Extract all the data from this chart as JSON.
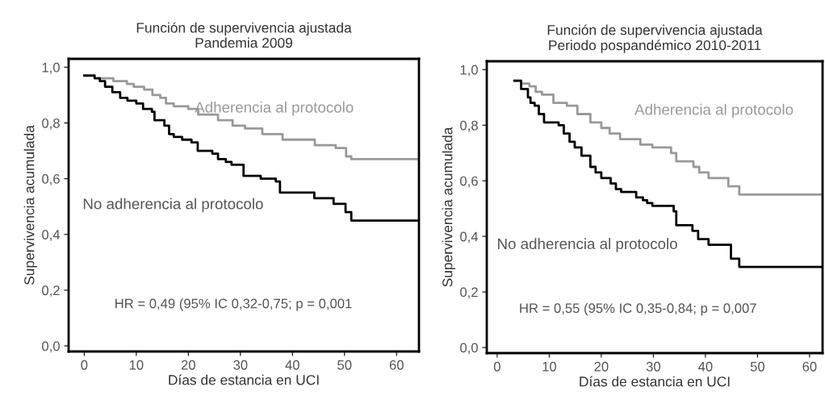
{
  "chart_data": [
    {
      "type": "step",
      "title": "Función de supervivencia ajustada",
      "subtitle": "Pandemia 2009",
      "xlabel": "Días de estancia en UCI",
      "ylabel": "Supervivencia acumulada",
      "xlim": [
        -3,
        64.3
      ],
      "ylim": [
        -0.02,
        1.03
      ],
      "xticks": [
        0,
        10,
        20,
        30,
        40,
        50,
        60
      ],
      "yticks": [
        {
          "value": 0,
          "label": "0,0"
        },
        {
          "value": 0.2,
          "label": "0,2"
        },
        {
          "value": 0.4,
          "label": "0,4"
        },
        {
          "value": 0.6,
          "label": "0,6"
        },
        {
          "value": 0.8,
          "label": "0,8"
        },
        {
          "value": 1.0,
          "label": "1,0"
        }
      ],
      "grid": false,
      "legend": false,
      "annotations": [
        "HR = 0,49 (95% IC 0,32-0,75; p = 0,001"
      ],
      "series": [
        {
          "name": "Adherencia al protocolo",
          "color": "#999999",
          "x": [
            2.8,
            5.6,
            8.2,
            9.5,
            11.5,
            13.1,
            14.6,
            15.7,
            17.2,
            20,
            21.9,
            25.7,
            28.5,
            30.9,
            34.2,
            38.1,
            44.3,
            48.3,
            50.3,
            51.3,
            64.3
          ],
          "values": [
            0.96,
            0.95,
            0.94,
            0.93,
            0.92,
            0.9,
            0.89,
            0.87,
            0.86,
            0.85,
            0.83,
            0.81,
            0.79,
            0.78,
            0.76,
            0.74,
            0.72,
            0.71,
            0.68,
            0.67,
            0.67
          ]
        },
        {
          "name": "No adherencia al protocolo",
          "color": "#000000",
          "x": [
            0,
            2,
            3,
            4,
            5.4,
            6.9,
            8.3,
            10,
            11.3,
            13,
            13.5,
            15.4,
            16.3,
            17.2,
            18.8,
            20.6,
            21.8,
            24.6,
            25.7,
            27.2,
            28.3,
            30.6,
            33.9,
            36.8,
            37.6,
            44.2,
            47.9,
            50.2,
            51.3,
            64.3
          ],
          "values": [
            0.97,
            0.96,
            0.95,
            0.93,
            0.91,
            0.89,
            0.88,
            0.87,
            0.85,
            0.84,
            0.81,
            0.79,
            0.76,
            0.75,
            0.74,
            0.73,
            0.7,
            0.69,
            0.67,
            0.66,
            0.65,
            0.61,
            0.6,
            0.59,
            0.55,
            0.53,
            0.51,
            0.48,
            0.45,
            0.45
          ]
        }
      ]
    },
    {
      "type": "step",
      "title": "Función de supervivencia ajustada",
      "subtitle": "Periodo pospandémico 2010-2011",
      "xlabel": "Días de estancia en UCI",
      "ylabel": "Supervivencia acumulada",
      "xlim": [
        -2,
        62.5
      ],
      "ylim": [
        -0.02,
        1.03
      ],
      "xticks": [
        0,
        10,
        20,
        30,
        40,
        50,
        60
      ],
      "yticks": [
        {
          "value": 0,
          "label": "0,0"
        },
        {
          "value": 0.2,
          "label": "0,2"
        },
        {
          "value": 0.4,
          "label": "0,4"
        },
        {
          "value": 0.6,
          "label": "0,6"
        },
        {
          "value": 0.8,
          "label": "0,8"
        },
        {
          "value": 1.0,
          "label": "1,0"
        }
      ],
      "grid": false,
      "legend": false,
      "annotations": [
        "HR = 0,55 (95% IC 0,35-0,84; p = 0,007"
      ],
      "series": [
        {
          "name": "Adherencia al protocolo",
          "color": "#999999",
          "x": [
            3.3,
            4.6,
            6.2,
            7.4,
            8.6,
            10.8,
            13.4,
            15.4,
            17.9,
            20,
            21.6,
            23.6,
            27.5,
            29.8,
            33.4,
            34.4,
            37.7,
            38.8,
            40.6,
            44.4,
            46.5,
            62.5
          ],
          "values": [
            0.96,
            0.95,
            0.94,
            0.92,
            0.91,
            0.88,
            0.87,
            0.84,
            0.81,
            0.79,
            0.77,
            0.75,
            0.73,
            0.72,
            0.7,
            0.67,
            0.65,
            0.63,
            0.61,
            0.58,
            0.55,
            0.55
          ]
        },
        {
          "name": "No adherencia al protocolo",
          "color": "#000000",
          "x": [
            3.3,
            4.6,
            5.9,
            6.4,
            7.2,
            8,
            9,
            11.8,
            12.8,
            13.9,
            14.9,
            16.2,
            17.9,
            18.9,
            20,
            21.8,
            22.8,
            23.8,
            26.7,
            28,
            28.8,
            29.8,
            33.9,
            34.4,
            37.5,
            38.6,
            40.6,
            44.9,
            46.5,
            62.5
          ],
          "values": [
            0.96,
            0.93,
            0.9,
            0.88,
            0.87,
            0.84,
            0.81,
            0.8,
            0.77,
            0.74,
            0.72,
            0.69,
            0.65,
            0.63,
            0.61,
            0.59,
            0.57,
            0.56,
            0.54,
            0.53,
            0.52,
            0.51,
            0.49,
            0.44,
            0.42,
            0.39,
            0.37,
            0.32,
            0.29,
            0.29
          ]
        }
      ]
    }
  ]
}
